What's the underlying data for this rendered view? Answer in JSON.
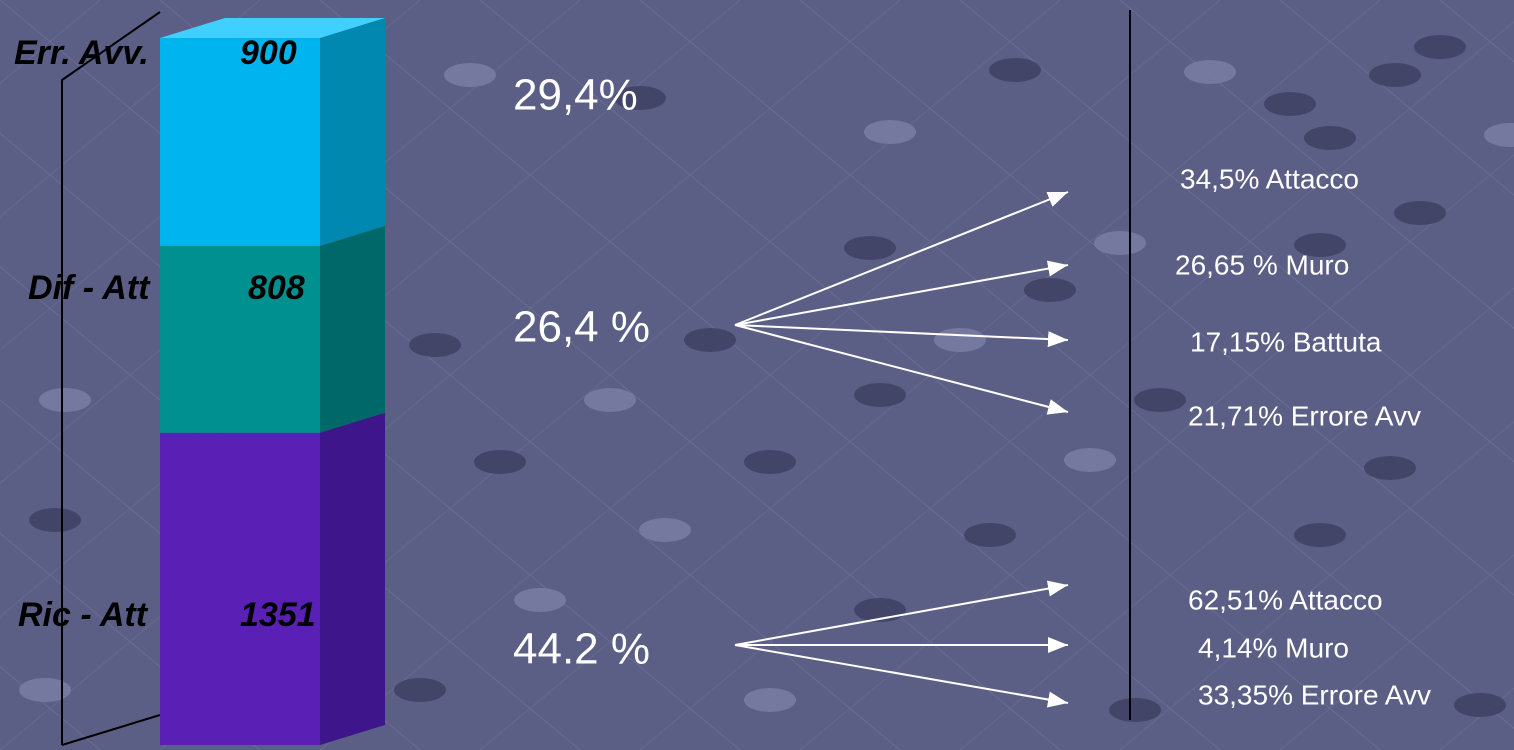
{
  "chart_data": {
    "type": "stacked-bar-3d",
    "categories": [
      "Ric - Att",
      "Dif - Att",
      "Err. Avv."
    ],
    "values": [
      1351,
      808,
      900
    ],
    "colors": [
      "#5a1fb5",
      "#009090",
      "#00b4ef"
    ],
    "side_colors": [
      "#3e158a",
      "#006868",
      "#0088b0"
    ],
    "annotations": {
      "shares": [
        "44.2 %",
        "26,4 %",
        "29,4%"
      ],
      "breakdowns": [
        [
          "62,51% Attacco",
          "4,14% Muro",
          "33,35% Errore Avv"
        ],
        [
          "34,5% Attacco",
          "26,65 % Muro",
          "17,15% Battuta",
          "21,71% Errore Avv"
        ],
        []
      ]
    }
  }
}
